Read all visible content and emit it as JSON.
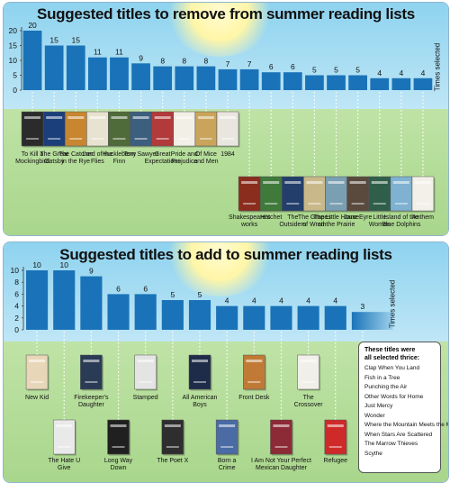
{
  "chart_data": [
    {
      "type": "bar",
      "title": "Suggested titles to remove from summer reading lists",
      "ylabel": "Times selected",
      "ylim": [
        0,
        20
      ],
      "yticks": [
        0,
        5,
        10,
        15,
        20
      ],
      "categories": [
        "To Kill a Mockingbird",
        "The Great Gatsby",
        "The Catcher in the Rye",
        "Lord of the Flies",
        "Huckleberry Finn",
        "Tom Sawyer",
        "Great Expectations",
        "Pride and Prejudice",
        "Of Mice and Men",
        "1984",
        "Shakespeare's works",
        "Hatchet",
        "The Outsiders",
        "The Grapes of Wrath",
        "The Little House on the Prairie",
        "Jane Eyre",
        "Little Women",
        "Island of the Blue Dolphins",
        "Anthem"
      ],
      "values": [
        20,
        15,
        15,
        11,
        11,
        9,
        8,
        8,
        8,
        7,
        7,
        6,
        6,
        5,
        5,
        5,
        4,
        4,
        4
      ],
      "color": "#1a73b8"
    },
    {
      "type": "bar",
      "title": "Suggested titles to add to summer reading lists",
      "ylabel": "Times selected",
      "ylim": [
        0,
        10
      ],
      "yticks": [
        0,
        2,
        4,
        6,
        8,
        10
      ],
      "categories": [
        "New Kid",
        "The Hate U Give",
        "Firekeeper's Daughter",
        "Long Way Down",
        "Stamped",
        "The Poet X",
        "All American Boys",
        "Born a Crime",
        "Front Desk",
        "I Am Not Your Perfect Mexican Daughter",
        "The Crossover",
        "Refugee",
        "These titles were all selected thrice"
      ],
      "values": [
        10,
        10,
        9,
        6,
        6,
        5,
        5,
        4,
        4,
        4,
        4,
        4,
        3
      ],
      "color": "#1a73b8"
    }
  ],
  "captions_top_row": [
    "To Kill a|Mockingbird",
    "The Great|Gatsby",
    "The Catcher|in the Rye",
    "Lord of the|Flies",
    "Huckleberry|Finn",
    "Tom Sawyer",
    "Great|Expectations",
    "Pride and|Prejudice",
    "Of Mice|and Men",
    "1984"
  ],
  "captions_bottom_row": [
    "Shakespeare's|works",
    "Hatchet",
    "The|Outsiders",
    "The Grapes|of Wrath",
    "The Little House|on the Prairie",
    "Jane Eyre",
    "Little|Women",
    "Island of the|Blue Dolphins",
    "Anthem"
  ],
  "captions2_top_row": [
    "New Kid",
    "Firekeeper's|Daughter",
    "Stamped",
    "All American|Boys",
    "Front Desk",
    "The|Crossover"
  ],
  "captions2_bottom_row": [
    "The Hate U|Give",
    "Long Way|Down",
    "The Poet X",
    "Born a|Crime",
    "I Am Not Your Perfect|Mexican Daughter",
    "Refugee"
  ],
  "thrice_box": {
    "title_line1": "These titles were",
    "title_line2": "all selected thrice:",
    "items": [
      "Clap When You Land",
      "Fish in a Tree",
      "Punching the Air",
      "Other Words for Home",
      "Just Mercy",
      "Wonder",
      "Where the Mountain Meets the Moon",
      "When Stars Are Scattered",
      "The Marrow Thieves",
      "Scythe"
    ]
  },
  "cover_colors_top": [
    "#2b2b2b",
    "#1b3f7a",
    "#c7862f",
    "#e8e2d0",
    "#4f6b3a",
    "#3d5f7e",
    "#b23a3a",
    "#f2efe6",
    "#c9a45a",
    "#e9e6df"
  ],
  "cover_colors_bottom": [
    "#8a2d1e",
    "#3f7a3a",
    "#233e6a",
    "#c9b98a",
    "#7a9fb3",
    "#5a4a3e",
    "#2f5f4a",
    "#7fb1d1",
    "#f2f0e8"
  ],
  "cover_colors2_top": [
    "#e7d7b8",
    "#2a3b56",
    "#e4e4e4",
    "#1e2c4a",
    "#c07a36",
    "#f1efe9"
  ],
  "cover_colors2_bottom": [
    "#e9e9e9",
    "#202020",
    "#2e2e2e",
    "#4a6ba3",
    "#8c2a35",
    "#cf2a2a"
  ]
}
